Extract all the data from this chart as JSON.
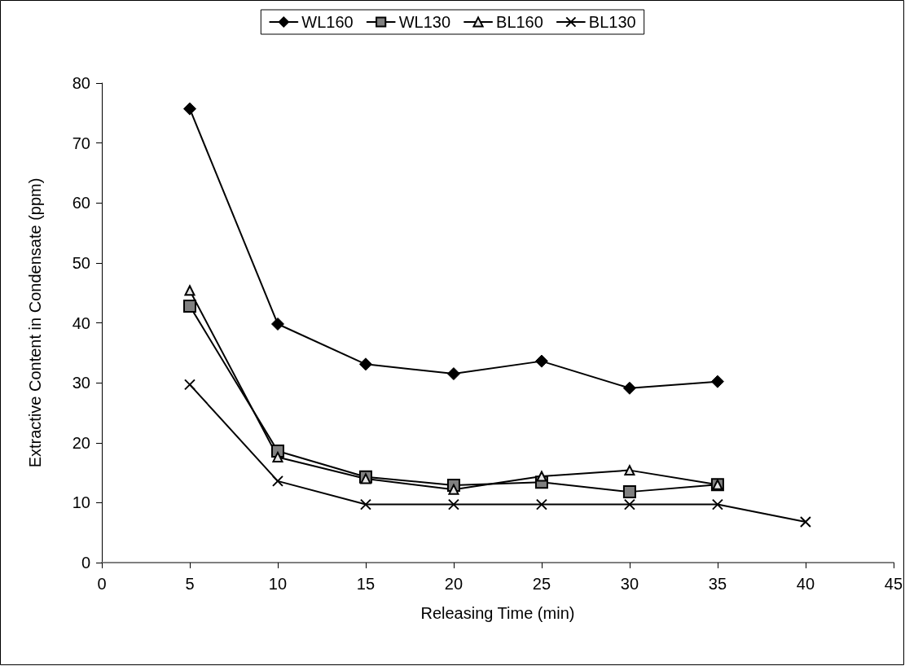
{
  "chart_data": {
    "type": "line",
    "xlabel": "Releasing Time (min)",
    "ylabel": "Extractive Content in Condensate (ppm)",
    "xlim": [
      0,
      45
    ],
    "xticks": [
      0,
      5,
      10,
      15,
      20,
      25,
      30,
      35,
      40,
      45
    ],
    "ylim": [
      0,
      80
    ],
    "yticks": [
      0,
      10,
      20,
      30,
      40,
      50,
      60,
      70,
      80
    ],
    "grid": false,
    "legend": "top",
    "line_style": "solid",
    "series": [
      {
        "name": "WL160",
        "color": "#000000",
        "marker": "diamond",
        "x": [
          5,
          10,
          15,
          20,
          25,
          30,
          35
        ],
        "values": [
          75.7,
          39.8,
          33.1,
          31.5,
          33.6,
          29.1,
          30.2
        ]
      },
      {
        "name": "WL130",
        "color": "#808080",
        "marker": "square",
        "x": [
          5,
          10,
          15,
          20,
          25,
          30,
          35
        ],
        "values": [
          42.8,
          18.6,
          14.3,
          12.9,
          13.4,
          11.8,
          13.0
        ]
      },
      {
        "name": "BL160",
        "color": "#e6e6e6",
        "marker": "triangle",
        "x": [
          5,
          10,
          15,
          20,
          25,
          30,
          35
        ],
        "values": [
          45.4,
          17.6,
          14.0,
          12.2,
          14.4,
          15.4,
          13.0
        ]
      },
      {
        "name": "BL130",
        "color": "#000000",
        "marker": "cross",
        "x": [
          5,
          10,
          15,
          20,
          25,
          30,
          35,
          40
        ],
        "values": [
          29.7,
          13.6,
          9.7,
          9.7,
          9.7,
          9.7,
          9.7,
          6.8
        ]
      }
    ]
  }
}
